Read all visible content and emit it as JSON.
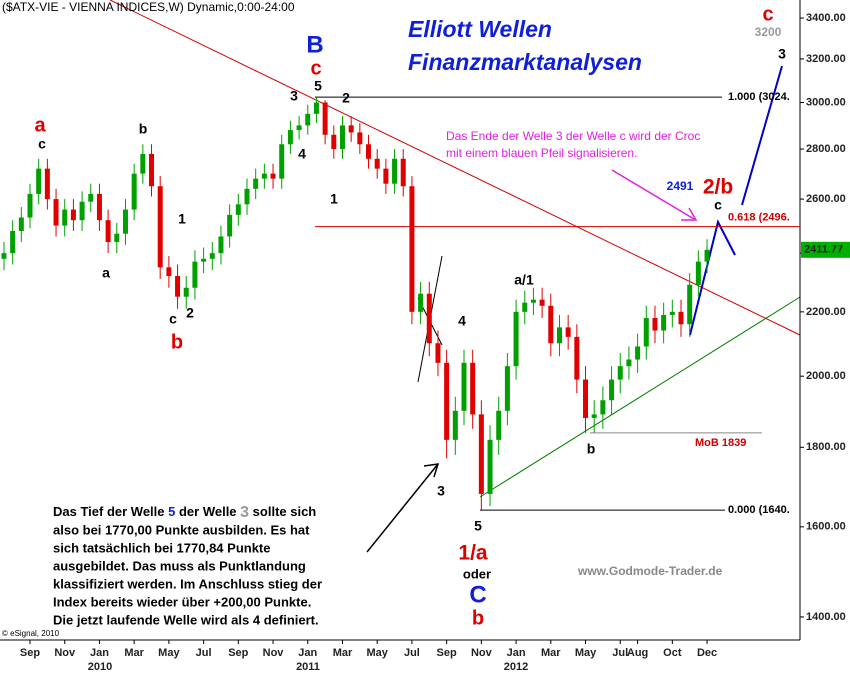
{
  "chart_data": {
    "type": "candlestick",
    "header": "($ATX-VIE - VIENNA INDICES,W) Dynamic,0:00-24:00",
    "title_lines": [
      "Elliott Wellen",
      "Finanzmarktanalysen"
    ],
    "log_scale": true,
    "ylim": [
      1353,
      3492
    ],
    "yticks": [
      {
        "value": 1400,
        "label": "1400.00"
      },
      {
        "value": 1600,
        "label": "1600.00"
      },
      {
        "value": 1800,
        "label": "1800.00"
      },
      {
        "value": 2000,
        "label": "2000.00"
      },
      {
        "value": 2200,
        "label": "2200.00"
      },
      {
        "value": 2400,
        "label": "2400.00"
      },
      {
        "value": 2600,
        "label": "2600.00"
      },
      {
        "value": 2800,
        "label": "2800.00"
      },
      {
        "value": 3000,
        "label": "3000.00"
      },
      {
        "value": 3200,
        "label": "3200.00"
      },
      {
        "value": 3400,
        "label": "3400.00"
      }
    ],
    "categories": [
      null,
      null,
      null,
      "Sep",
      null,
      null,
      null,
      "Nov",
      null,
      null,
      null,
      "Jan",
      null,
      null,
      null,
      "Mar",
      null,
      null,
      null,
      "May",
      null,
      null,
      null,
      "Jul",
      null,
      null,
      null,
      "Sep",
      null,
      null,
      null,
      "Nov",
      null,
      null,
      null,
      "Jan",
      null,
      null,
      null,
      "Mar",
      null,
      null,
      null,
      "May",
      null,
      null,
      null,
      "Jul",
      null,
      null,
      null,
      "Sep",
      null,
      null,
      null,
      "Nov",
      null,
      null,
      null,
      "Jan",
      null,
      null,
      null,
      "Mar",
      null,
      null,
      null,
      "May",
      null,
      null,
      null,
      "Jul",
      null,
      "Aug",
      null,
      null,
      null,
      "Oct",
      null,
      null,
      null,
      "Dec"
    ],
    "years": [
      "2010",
      "2011",
      "2012"
    ],
    "up_color": "#00a000",
    "down_color": "#e00000",
    "open": [
      2380,
      2400,
      2480,
      2530,
      2620,
      2720,
      2600,
      2500,
      2560,
      2520,
      2590,
      2620,
      2520,
      2440,
      2470,
      2560,
      2700,
      2780,
      2650,
      2350,
      2320,
      2250,
      2280,
      2370,
      2380,
      2400,
      2460,
      2540,
      2580,
      2640,
      2680,
      2700,
      2680,
      2820,
      2880,
      2900,
      2950,
      3000,
      2860,
      2800,
      2900,
      2870,
      2820,
      2760,
      2720,
      2660,
      2760,
      2650,
      2200,
      2260,
      2100,
      2040,
      1820,
      1900,
      2040,
      1890,
      1680,
      1820,
      1900,
      2030,
      2200,
      2230,
      2240,
      2220,
      2100,
      2150,
      2120,
      1990,
      1880,
      1890,
      1930,
      1990,
      2030,
      2050,
      2090,
      2180,
      2140,
      2190,
      2200,
      2160,
      2290,
      2370
    ],
    "high": [
      2440,
      2520,
      2570,
      2660,
      2760,
      2760,
      2640,
      2600,
      2600,
      2630,
      2660,
      2660,
      2560,
      2510,
      2600,
      2740,
      2820,
      2820,
      2690,
      2390,
      2360,
      2320,
      2410,
      2420,
      2440,
      2500,
      2580,
      2620,
      2680,
      2720,
      2740,
      2740,
      2860,
      2920,
      2940,
      2990,
      3024,
      3010,
      2900,
      2940,
      2940,
      2910,
      2860,
      2800,
      2760,
      2800,
      2800,
      2690,
      2300,
      2300,
      2140,
      2080,
      1940,
      2080,
      2080,
      1930,
      1860,
      1940,
      2070,
      2240,
      2270,
      2280,
      2280,
      2260,
      2190,
      2190,
      2160,
      2030,
      1930,
      1970,
      2030,
      2070,
      2090,
      2130,
      2220,
      2220,
      2230,
      2240,
      2240,
      2330,
      2410,
      2450
    ],
    "low": [
      2340,
      2360,
      2440,
      2490,
      2580,
      2560,
      2460,
      2460,
      2480,
      2480,
      2550,
      2480,
      2400,
      2400,
      2430,
      2520,
      2660,
      2610,
      2310,
      2280,
      2210,
      2210,
      2240,
      2330,
      2340,
      2360,
      2420,
      2500,
      2540,
      2600,
      2640,
      2640,
      2640,
      2780,
      2840,
      2860,
      2910,
      2820,
      2760,
      2760,
      2830,
      2780,
      2720,
      2680,
      2620,
      2620,
      2610,
      2160,
      2160,
      2060,
      2000,
      1771,
      1780,
      1860,
      1850,
      1641,
      1650,
      1780,
      1860,
      1990,
      2160,
      2190,
      2180,
      2060,
      2060,
      2080,
      1950,
      1839,
      1840,
      1850,
      1890,
      1950,
      1990,
      2010,
      2050,
      2100,
      2100,
      2150,
      2120,
      2120,
      2250,
      2330
    ],
    "close": [
      2400,
      2480,
      2530,
      2620,
      2720,
      2600,
      2500,
      2560,
      2520,
      2590,
      2620,
      2520,
      2440,
      2470,
      2560,
      2700,
      2780,
      2650,
      2350,
      2320,
      2250,
      2280,
      2370,
      2380,
      2400,
      2460,
      2540,
      2580,
      2640,
      2680,
      2700,
      2680,
      2820,
      2880,
      2900,
      2950,
      3000,
      2860,
      2800,
      2900,
      2870,
      2820,
      2760,
      2720,
      2660,
      2760,
      2650,
      2200,
      2260,
      2100,
      2040,
      1820,
      1900,
      2040,
      1890,
      1680,
      1820,
      1900,
      2030,
      2200,
      2230,
      2240,
      2220,
      2100,
      2150,
      2120,
      1990,
      1880,
      1890,
      1930,
      1990,
      2030,
      2050,
      2090,
      2180,
      2140,
      2190,
      2200,
      2160,
      2290,
      2370,
      2412
    ],
    "last_price": 2411.77,
    "levels": [
      {
        "label": "1.000 (3024.",
        "value": 3024
      },
      {
        "label": "0.618 (2496.",
        "value": 2496
      },
      {
        "label": "0.000 (1640.",
        "value": 1640
      },
      {
        "label": "MoB 1839",
        "value": 1839
      }
    ],
    "wave_labels": [
      "a",
      "c",
      "b",
      "1",
      "a",
      "c",
      "2",
      "b",
      "B",
      "c",
      "5",
      "3",
      "2",
      "4",
      "1",
      "4",
      "3",
      "5",
      "1/a",
      "oder",
      "C",
      "b",
      "a/1",
      "b",
      "c",
      "3200",
      "3",
      "2491",
      "2/b",
      "c"
    ],
    "signal_note": [
      "Das Ende der Welle 3 der Welle c wird der Croc",
      "mit einem blauen Pfeil signalisieren."
    ],
    "comment_first_line": [
      "Das Tief der Welle ",
      "5",
      " der Welle ",
      "3",
      " sollte sich"
    ],
    "comment_lines": [
      "also bei 1770,00 Punkte ausbilden. Es hat",
      "sich tatsächlich bei 1770,84 Punkte",
      "ausgebildet. Das muss als Punktlandung",
      "klassifiziert werden. Im Anschluss stieg der",
      "Index bereits wieder über +200,00 Punkte.",
      "Die jetzt laufende Welle wird als 4 definiert."
    ],
    "watermark": "www.Godmode-Trader.de",
    "copyright": "© eSignal, 2010"
  }
}
